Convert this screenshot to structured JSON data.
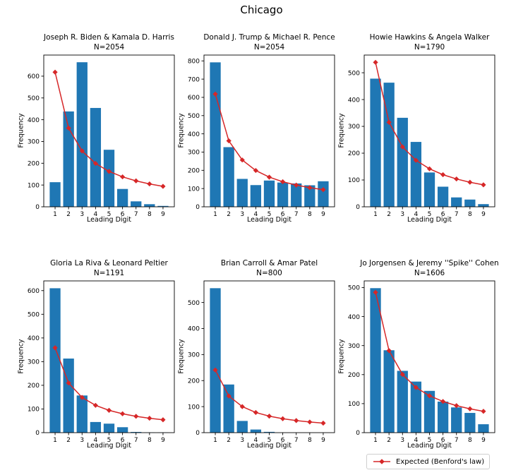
{
  "figure_title": "Chicago",
  "colors": {
    "bar": "#1f77b4",
    "line": "#d62728",
    "axis": "#000000",
    "background": "#ffffff",
    "legend_border": "#cfcfcf"
  },
  "legend": {
    "label": "Expected (Benford's law)"
  },
  "chart_data": [
    {
      "type": "bar",
      "title": "Joseph R. Biden & Kamala D. Harris",
      "subtitle": "N=2054",
      "n": 2054,
      "xlabel": "Leading Digit",
      "ylabel": "Frequency",
      "categories": [
        1,
        2,
        3,
        4,
        5,
        6,
        7,
        8,
        9
      ],
      "series": [
        {
          "name": "Frequency",
          "type": "bar",
          "values": [
            113,
            438,
            664,
            454,
            262,
            82,
            25,
            12,
            4
          ]
        },
        {
          "name": "Expected (Benford's law)",
          "type": "line",
          "values": [
            618.3,
            361.7,
            256.6,
            199.1,
            162.6,
            137.5,
            119.1,
            105.1,
            94.0
          ]
        }
      ],
      "yticks": [
        0,
        100,
        200,
        300,
        400,
        500,
        600
      ],
      "ylim": [
        0,
        697
      ]
    },
    {
      "type": "bar",
      "title": "Donald J. Trump & Michael R. Pence",
      "subtitle": "N=2054",
      "n": 2054,
      "xlabel": "Leading Digit",
      "ylabel": "Frequency",
      "categories": [
        1,
        2,
        3,
        4,
        5,
        6,
        7,
        8,
        9
      ],
      "series": [
        {
          "name": "Frequency",
          "type": "bar",
          "values": [
            792,
            327,
            153,
            119,
            144,
            133,
            128,
            118,
            140
          ]
        },
        {
          "name": "Expected (Benford's law)",
          "type": "line",
          "values": [
            618.3,
            361.7,
            256.6,
            199.1,
            162.6,
            137.5,
            119.1,
            105.1,
            94.0
          ]
        }
      ],
      "yticks": [
        0,
        100,
        200,
        300,
        400,
        500,
        600,
        700,
        800
      ],
      "ylim": [
        0,
        832
      ]
    },
    {
      "type": "bar",
      "title": "Howie Hawkins & Angela Walker",
      "subtitle": "N=1790",
      "n": 1790,
      "xlabel": "Leading Digit",
      "ylabel": "Frequency",
      "categories": [
        1,
        2,
        3,
        4,
        5,
        6,
        7,
        8,
        9
      ],
      "series": [
        {
          "name": "Frequency",
          "type": "bar",
          "values": [
            478,
            463,
            332,
            242,
            128,
            75,
            35,
            27,
            10
          ]
        },
        {
          "name": "Expected (Benford's law)",
          "type": "line",
          "values": [
            538.8,
            315.2,
            223.6,
            173.5,
            141.7,
            119.8,
            103.8,
            91.6,
            81.9
          ]
        }
      ],
      "yticks": [
        0,
        100,
        200,
        300,
        400,
        500
      ],
      "ylim": [
        0,
        566
      ]
    },
    {
      "type": "bar",
      "title": "Gloria La Riva & Leonard Peltier",
      "subtitle": "N=1191",
      "n": 1191,
      "xlabel": "Leading Digit",
      "ylabel": "Frequency",
      "categories": [
        1,
        2,
        3,
        4,
        5,
        6,
        7,
        8,
        9
      ],
      "series": [
        {
          "name": "Frequency",
          "type": "bar",
          "values": [
            610,
            313,
            157,
            45,
            38,
            23,
            3,
            1,
            1
          ]
        },
        {
          "name": "Expected (Benford's law)",
          "type": "line",
          "values": [
            358.5,
            209.7,
            148.8,
            115.4,
            94.3,
            79.7,
            69.1,
            60.9,
            54.5
          ]
        }
      ],
      "yticks": [
        0,
        100,
        200,
        300,
        400,
        500,
        600
      ],
      "ylim": [
        0,
        641
      ]
    },
    {
      "type": "bar",
      "title": "Brian Carroll & Amar Patel",
      "subtitle": "N=800",
      "n": 800,
      "xlabel": "Leading Digit",
      "ylabel": "Frequency",
      "categories": [
        1,
        2,
        3,
        4,
        5,
        6,
        7,
        8,
        9
      ],
      "series": [
        {
          "name": "Frequency",
          "type": "bar",
          "values": [
            555,
            185,
            45,
            12,
            3,
            0,
            0,
            0,
            0
          ]
        },
        {
          "name": "Expected (Benford's law)",
          "type": "line",
          "values": [
            240.8,
            140.9,
            100.0,
            77.5,
            63.3,
            53.6,
            46.4,
            40.9,
            36.6
          ]
        }
      ],
      "yticks": [
        0,
        100,
        200,
        300,
        400,
        500
      ],
      "ylim": [
        0,
        583
      ]
    },
    {
      "type": "bar",
      "title": "Jo Jorgensen & Jeremy ''Spike'' Cohen",
      "subtitle": "N=1606",
      "n": 1606,
      "xlabel": "Leading Digit",
      "ylabel": "Frequency",
      "categories": [
        1,
        2,
        3,
        4,
        5,
        6,
        7,
        8,
        9
      ],
      "series": [
        {
          "name": "Frequency",
          "type": "bar",
          "values": [
            498,
            284,
            213,
            176,
            144,
            107,
            87,
            68,
            29
          ]
        },
        {
          "name": "Expected (Benford's law)",
          "type": "line",
          "values": [
            483.5,
            282.8,
            200.7,
            155.6,
            127.2,
            107.5,
            93.1,
            82.1,
            73.5
          ]
        }
      ],
      "yticks": [
        0,
        100,
        200,
        300,
        400,
        500
      ],
      "ylim": [
        0,
        523
      ]
    }
  ]
}
